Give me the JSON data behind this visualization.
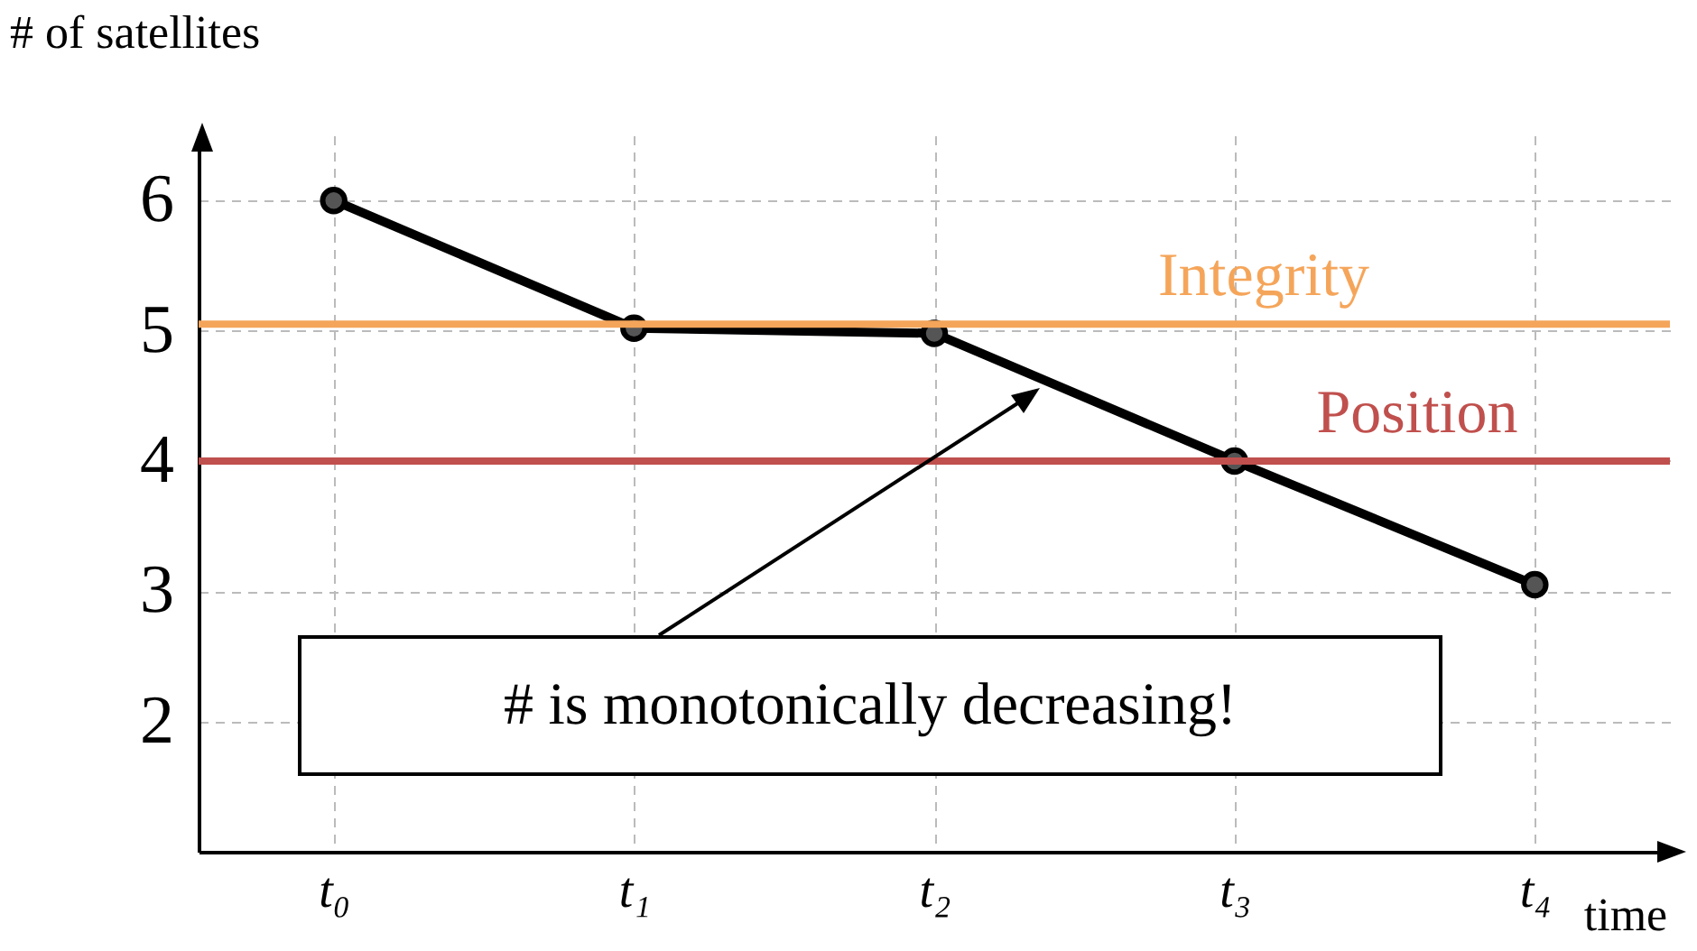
{
  "chart_data": {
    "type": "line",
    "xlabel": "time",
    "ylabel": "# of satellites",
    "categories": [
      "t₀",
      "t₁",
      "t₂",
      "t₃",
      "t₄"
    ],
    "series": [
      {
        "color": "#000000",
        "values": [
          6,
          5.02,
          4.98,
          4.0,
          3.05
        ]
      }
    ],
    "ylim": [
      1,
      6.5
    ],
    "yticks": [
      2,
      3,
      4,
      5,
      6
    ],
    "ref_lines": [
      {
        "axis": "y",
        "value": 5.05,
        "label": "Integrity",
        "color": "#f5a55a"
      },
      {
        "axis": "y",
        "value": 4.0,
        "label": "Position",
        "color": "#c0504d"
      }
    ],
    "annotations": [
      "# is monotonically decreasing!"
    ],
    "grid": true,
    "marker": "circle",
    "line_style": "solid"
  }
}
